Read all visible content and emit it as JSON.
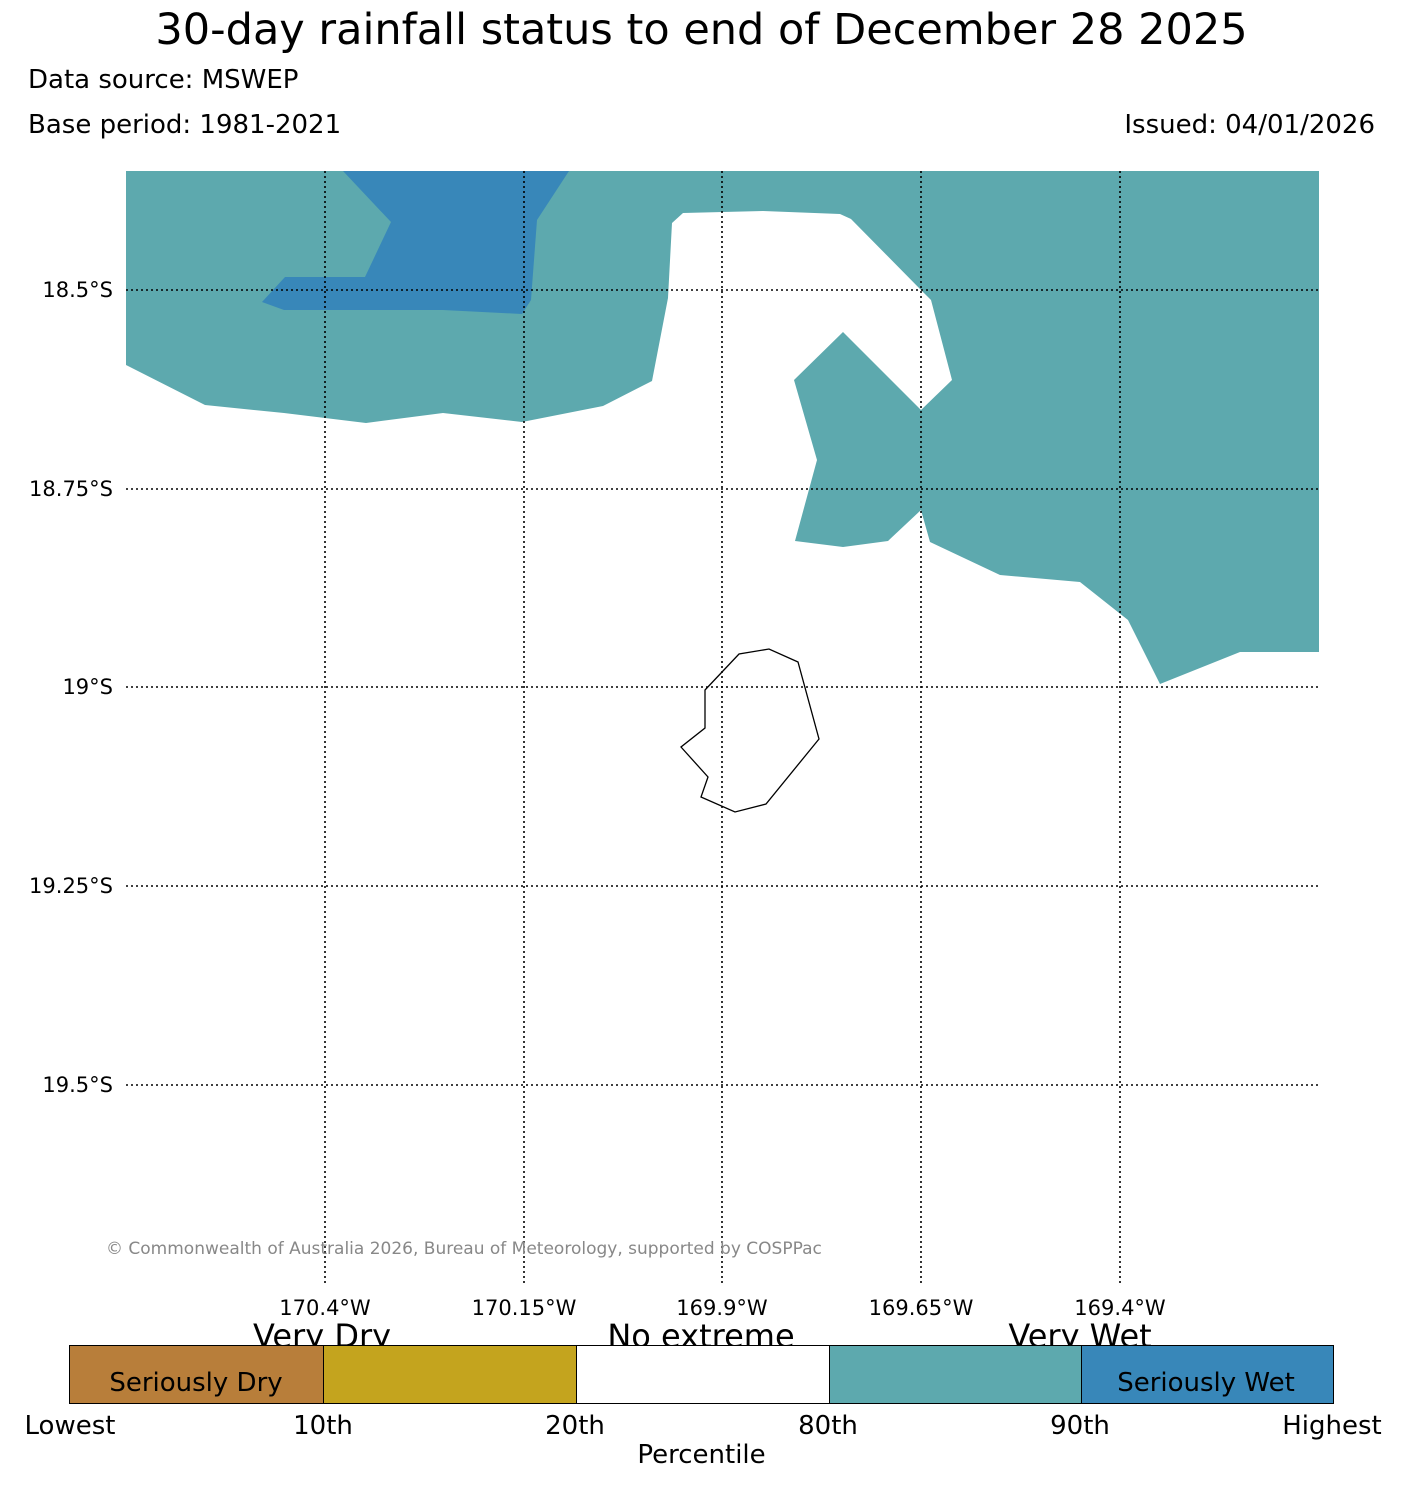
{
  "header": {
    "title": "30-day rainfall status to end of December 28 2025",
    "data_source": "Data source: MSWEP",
    "base_period": "Base period: 1981-2021",
    "issued": "Issued: 04/01/2026"
  },
  "map": {
    "lat_labels": [
      "18.5°S",
      "18.75°S",
      "19°S",
      "19.25°S",
      "19.5°S"
    ],
    "lon_labels": [
      "170.4°W",
      "170.15°W",
      "169.9°W",
      "169.65°W",
      "169.4°W"
    ],
    "copyright": "© Commonwealth of Australia 2026, Bureau of Meteorology, supported by COSPPac",
    "regions": [
      {
        "name": "very-wet",
        "color": "#5da9ae"
      },
      {
        "name": "seriously-wet",
        "color": "#3887b9"
      }
    ],
    "island": "Niue outline"
  },
  "legend": {
    "categories": [
      {
        "name": "Seriously Dry",
        "color": "#b87e3a"
      },
      {
        "name": "Very Dry",
        "color": "#c4a41e"
      },
      {
        "name": "No extreme",
        "color": "#ffffff"
      },
      {
        "name": "Very Wet",
        "color": "#5da9ae"
      },
      {
        "name": "Seriously Wet",
        "color": "#3887b9"
      }
    ],
    "top_labels": {
      "very_dry": "Very Dry",
      "no_extreme": "No extreme",
      "very_wet": "Very Wet"
    },
    "inner_labels": {
      "seriously_dry": "Seriously Dry",
      "seriously_wet": "Seriously Wet"
    },
    "ticks": [
      "Lowest",
      "10th",
      "20th",
      "80th",
      "90th",
      "Highest"
    ],
    "xlabel": "Percentile"
  }
}
